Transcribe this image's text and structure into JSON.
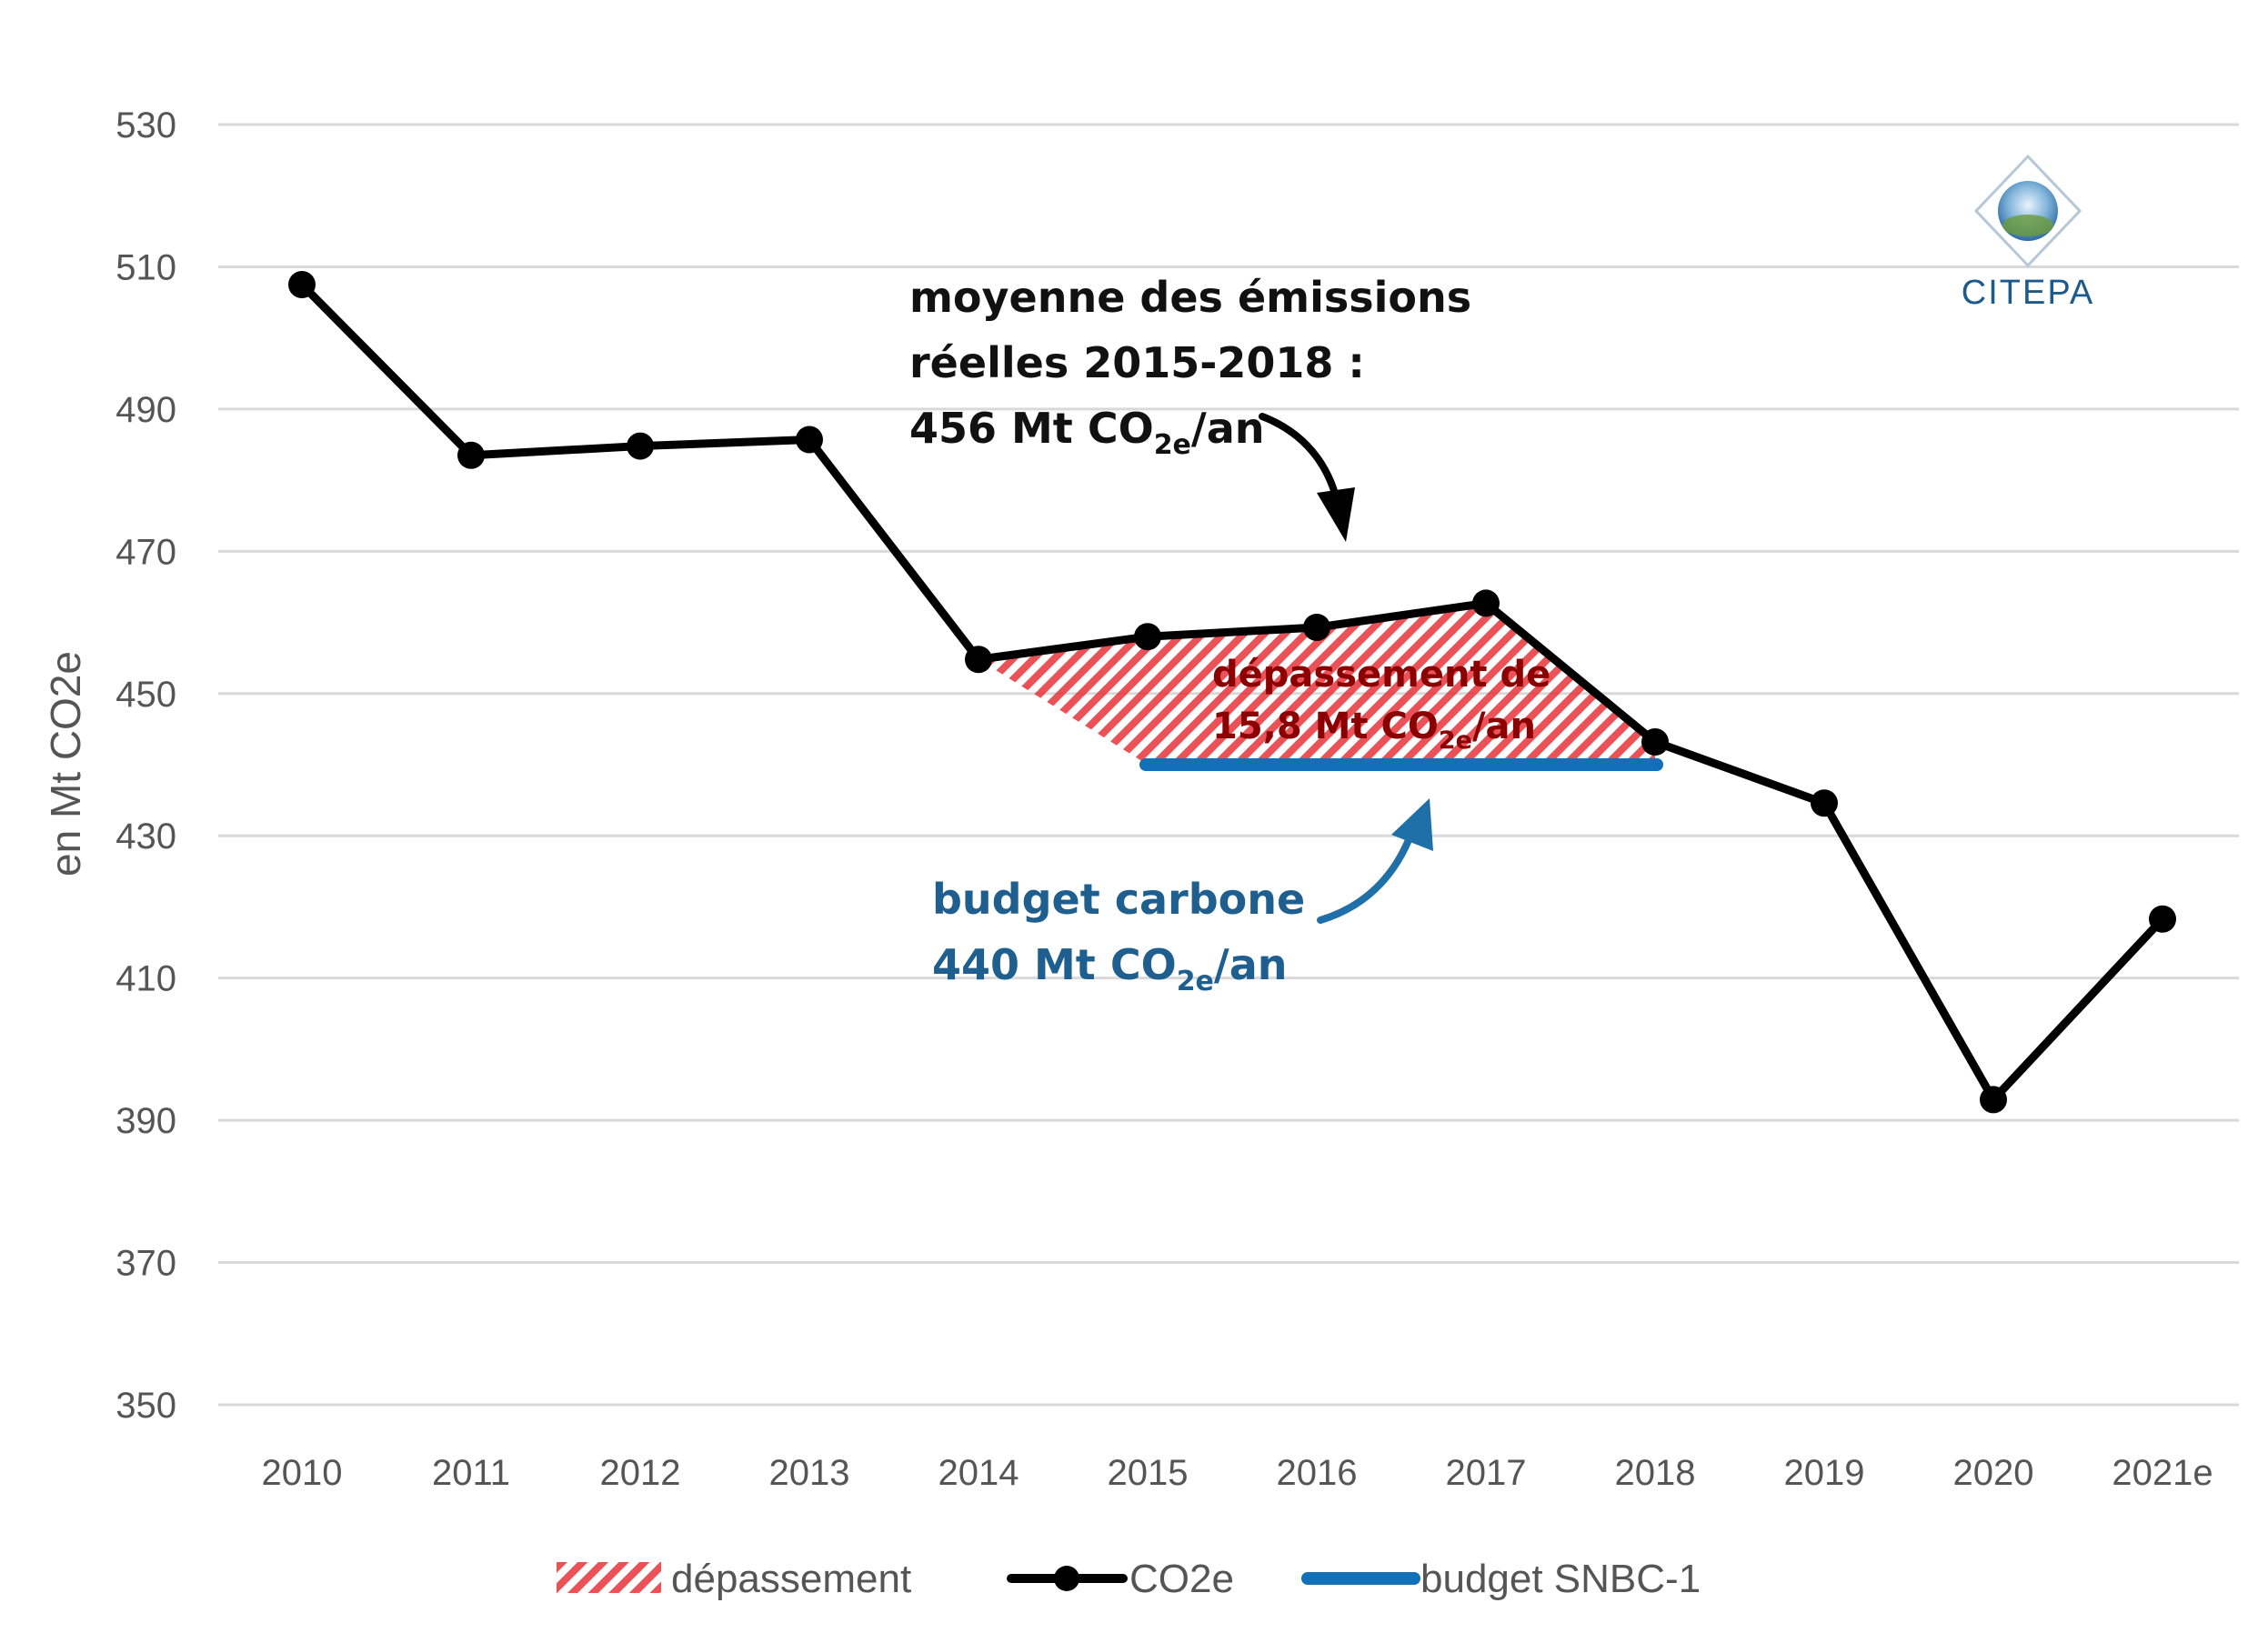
{
  "chart_data": {
    "type": "line",
    "ylabel": "en Mt CO2e",
    "ylim": [
      350,
      530
    ],
    "yticks": [
      350,
      370,
      390,
      410,
      430,
      450,
      470,
      490,
      510,
      530
    ],
    "categories": [
      "2010",
      "2011",
      "2012",
      "2013",
      "2014",
      "2015",
      "2016",
      "2017",
      "2018",
      "2019",
      "2020",
      "2021e"
    ],
    "grid": true,
    "legend_position": "bottom",
    "series": [
      {
        "name": "CO2e",
        "color": "#000000",
        "values": [
          507.5,
          483.5,
          484.8,
          485.7,
          454.8,
          458.0,
          459.3,
          462.7,
          443.2,
          434.6,
          392.9,
          418.3
        ]
      }
    ],
    "budget": {
      "name": "budget SNBC-1",
      "color": "#1170b8",
      "value": 440,
      "from": "2015",
      "to": "2018"
    },
    "overshoot": {
      "name": "dépassement",
      "color": "#e8343a"
    },
    "annotations": {
      "average": {
        "line1": "moyenne des émissions",
        "line2": "réelles 2015-2018 :",
        "line3_pre": "456 Mt CO",
        "line3_sub": "2e",
        "line3_post": "/an"
      },
      "overshoot": {
        "line1": "dépassement de",
        "line2_pre": "15,8 Mt CO",
        "line2_sub": "2e",
        "line2_post": "/an"
      },
      "budget": {
        "line1": "budget carbone",
        "line2_pre": "440 Mt CO",
        "line2_sub": "2e",
        "line2_post": "/an"
      }
    }
  },
  "logo": {
    "text": "CITEPA"
  }
}
